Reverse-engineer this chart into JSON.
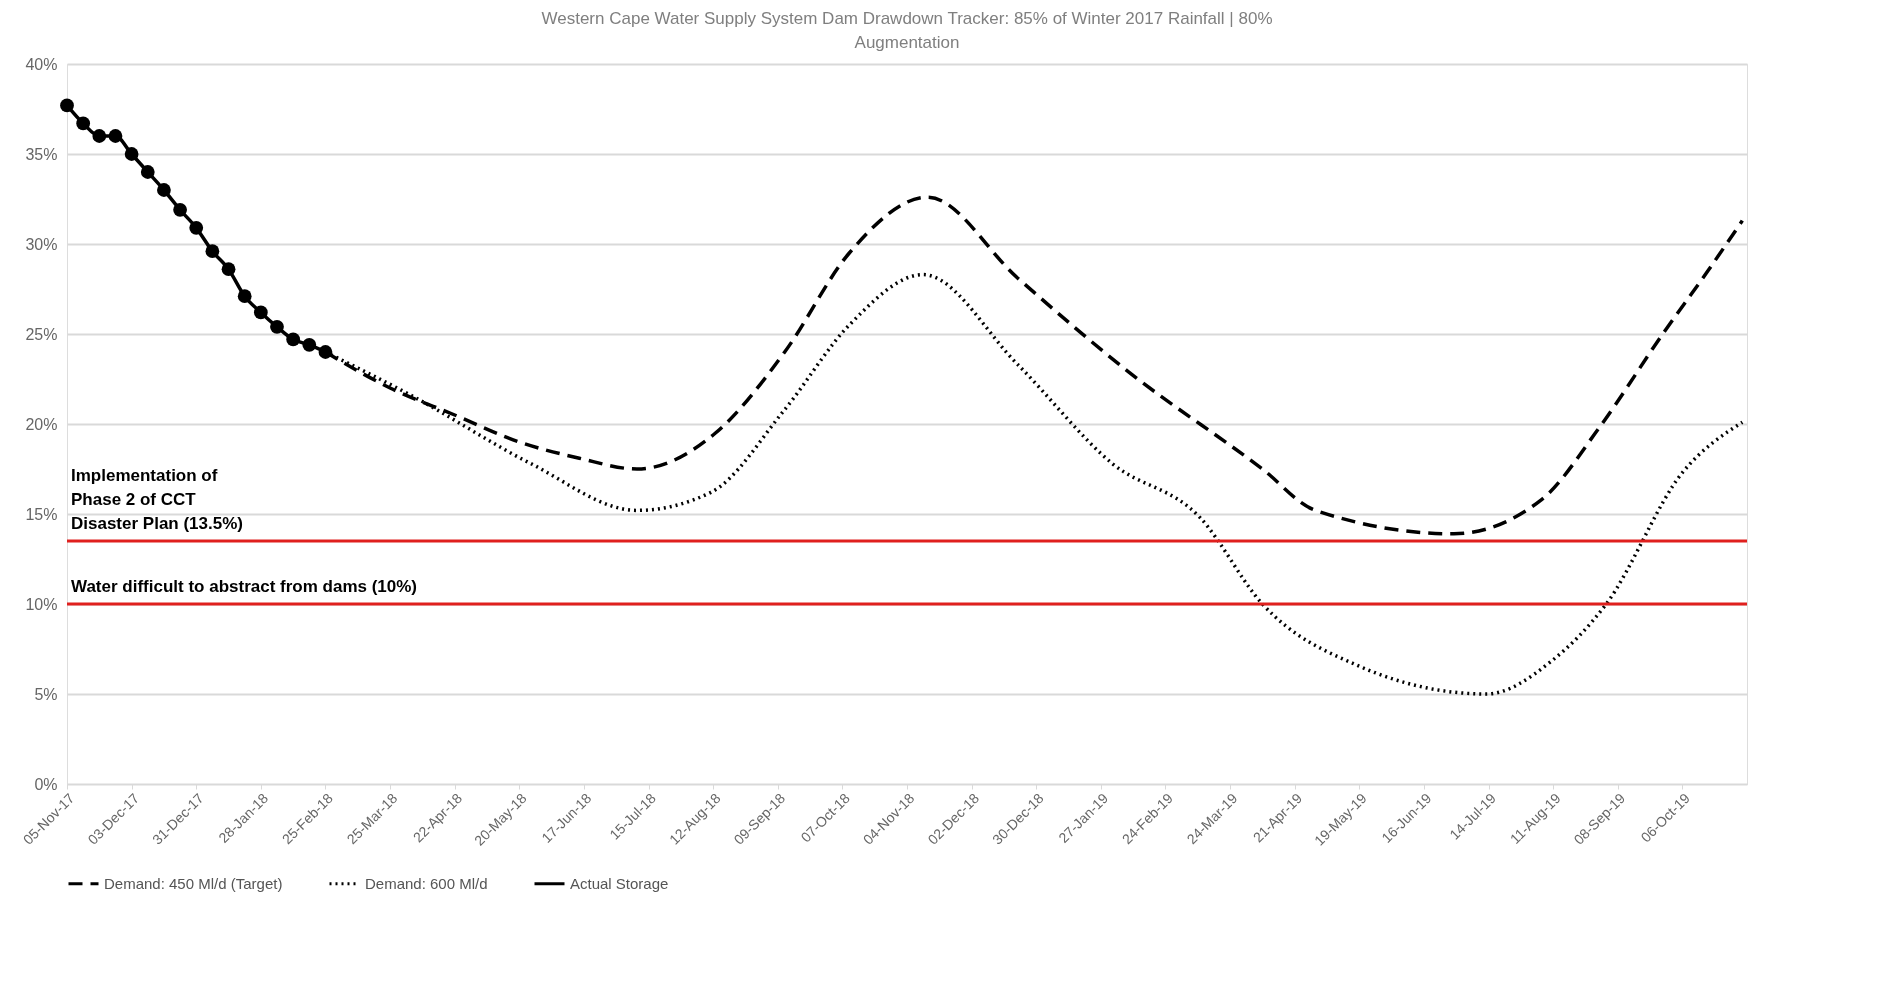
{
  "chart_data": {
    "type": "line",
    "title": "Western Cape Water Supply System Dam Drawdown Tracker: 85% of Winter 2017 Rainfall | 80% Augmentation",
    "xlim": [
      "2017-11-05",
      "2019-11-03"
    ],
    "xticks": [
      {
        "value": "2017-11-05",
        "label": "05-Nov-17"
      },
      {
        "value": "2017-12-03",
        "label": "03-Dec-17"
      },
      {
        "value": "2017-12-31",
        "label": "31-Dec-17"
      },
      {
        "value": "2018-01-28",
        "label": "28-Jan-18"
      },
      {
        "value": "2018-02-25",
        "label": "25-Feb-18"
      },
      {
        "value": "2018-03-25",
        "label": "25-Mar-18"
      },
      {
        "value": "2018-04-22",
        "label": "22-Apr-18"
      },
      {
        "value": "2018-05-20",
        "label": "20-May-18"
      },
      {
        "value": "2018-06-17",
        "label": "17-Jun-18"
      },
      {
        "value": "2018-07-15",
        "label": "15-Jul-18"
      },
      {
        "value": "2018-08-12",
        "label": "12-Aug-18"
      },
      {
        "value": "2018-09-09",
        "label": "09-Sep-18"
      },
      {
        "value": "2018-10-07",
        "label": "07-Oct-18"
      },
      {
        "value": "2018-11-04",
        "label": "04-Nov-18"
      },
      {
        "value": "2018-12-02",
        "label": "02-Dec-18"
      },
      {
        "value": "2018-12-30",
        "label": "30-Dec-18"
      },
      {
        "value": "2019-01-27",
        "label": "27-Jan-19"
      },
      {
        "value": "2019-02-24",
        "label": "24-Feb-19"
      },
      {
        "value": "2019-03-24",
        "label": "24-Mar-19"
      },
      {
        "value": "2019-04-21",
        "label": "21-Apr-19"
      },
      {
        "value": "2019-05-19",
        "label": "19-May-19"
      },
      {
        "value": "2019-06-16",
        "label": "16-Jun-19"
      },
      {
        "value": "2019-07-14",
        "label": "14-Jul-19"
      },
      {
        "value": "2019-08-11",
        "label": "11-Aug-19"
      },
      {
        "value": "2019-09-08",
        "label": "08-Sep-19"
      },
      {
        "value": "2019-10-06",
        "label": "06-Oct-19"
      }
    ],
    "ylim": [
      0,
      40
    ],
    "yticks": [
      {
        "value": 0,
        "label": "0%"
      },
      {
        "value": 5,
        "label": "5%"
      },
      {
        "value": 10,
        "label": "10%"
      },
      {
        "value": 15,
        "label": "15%"
      },
      {
        "value": 20,
        "label": "20%"
      },
      {
        "value": 25,
        "label": "25%"
      },
      {
        "value": 30,
        "label": "30%"
      },
      {
        "value": 35,
        "label": "35%"
      },
      {
        "value": 40,
        "label": "40%"
      }
    ],
    "grid": "y",
    "legend": "bottom",
    "series": [
      {
        "name": "Demand: 450 Ml/d (Target)",
        "color": "#000000",
        "line_style": "dashed",
        "marker": "none",
        "x": [
          "2018-02-25",
          "2018-03-25",
          "2018-04-22",
          "2018-05-20",
          "2018-06-15",
          "2018-07-10",
          "2018-08-13",
          "2018-09-12",
          "2018-10-10",
          "2018-11-13",
          "2018-12-22",
          "2019-02-08",
          "2019-04-07",
          "2019-04-30",
          "2019-06-29",
          "2019-08-06",
          "2019-08-31",
          "2019-09-28",
          "2019-10-17",
          "2019-11-01"
        ],
        "values": [
          24.0,
          22.0,
          20.5,
          19.0,
          18.1,
          17.5,
          19.5,
          24.0,
          29.5,
          32.6,
          28.1,
          22.9,
          17.5,
          15.2,
          13.9,
          15.8,
          19.8,
          25.1,
          28.5,
          31.3
        ]
      },
      {
        "name": "Demand: 600 Ml/d",
        "color": "#000000",
        "line_style": "dotted",
        "marker": "none",
        "x": [
          "2018-02-25",
          "2018-04-03",
          "2018-05-25",
          "2018-07-10",
          "2018-08-11",
          "2018-09-12",
          "2018-10-10",
          "2018-11-11",
          "2018-12-22",
          "2019-02-01",
          "2019-03-11",
          "2019-04-07",
          "2019-05-18",
          "2019-07-13",
          "2019-08-10",
          "2019-09-03",
          "2019-10-06",
          "2019-11-01"
        ],
        "values": [
          24.0,
          21.6,
          17.8,
          15.2,
          16.2,
          20.8,
          25.5,
          28.3,
          23.3,
          17.8,
          14.8,
          10.0,
          6.6,
          5.0,
          6.8,
          10.0,
          17.3,
          20.1
        ]
      },
      {
        "name": "Actual Storage",
        "color": "#000000",
        "line_style": "solid",
        "marker": "circle",
        "x": [
          "2017-11-05",
          "2017-11-12",
          "2017-11-19",
          "2017-11-26",
          "2017-12-03",
          "2017-12-10",
          "2017-12-17",
          "2017-12-24",
          "2017-12-31",
          "2018-01-07",
          "2018-01-14",
          "2018-01-21",
          "2018-01-28",
          "2018-02-04",
          "2018-02-11",
          "2018-02-18",
          "2018-02-25"
        ],
        "values": [
          37.7,
          36.7,
          36.0,
          36.0,
          35.0,
          34.0,
          33.0,
          31.9,
          30.9,
          29.6,
          28.6,
          27.1,
          26.2,
          25.4,
          24.7,
          24.4,
          24.0
        ]
      }
    ],
    "ref_lines": [
      {
        "axis": "y",
        "value": 13.5,
        "label": "Implementation of\nPhase 2 of CCT\nDisaster Plan (13.5%)",
        "color": "#e0201e"
      },
      {
        "axis": "y",
        "value": 10,
        "label": "Water difficult to abstract from dams (10%)",
        "color": "#e0201e"
      }
    ]
  }
}
